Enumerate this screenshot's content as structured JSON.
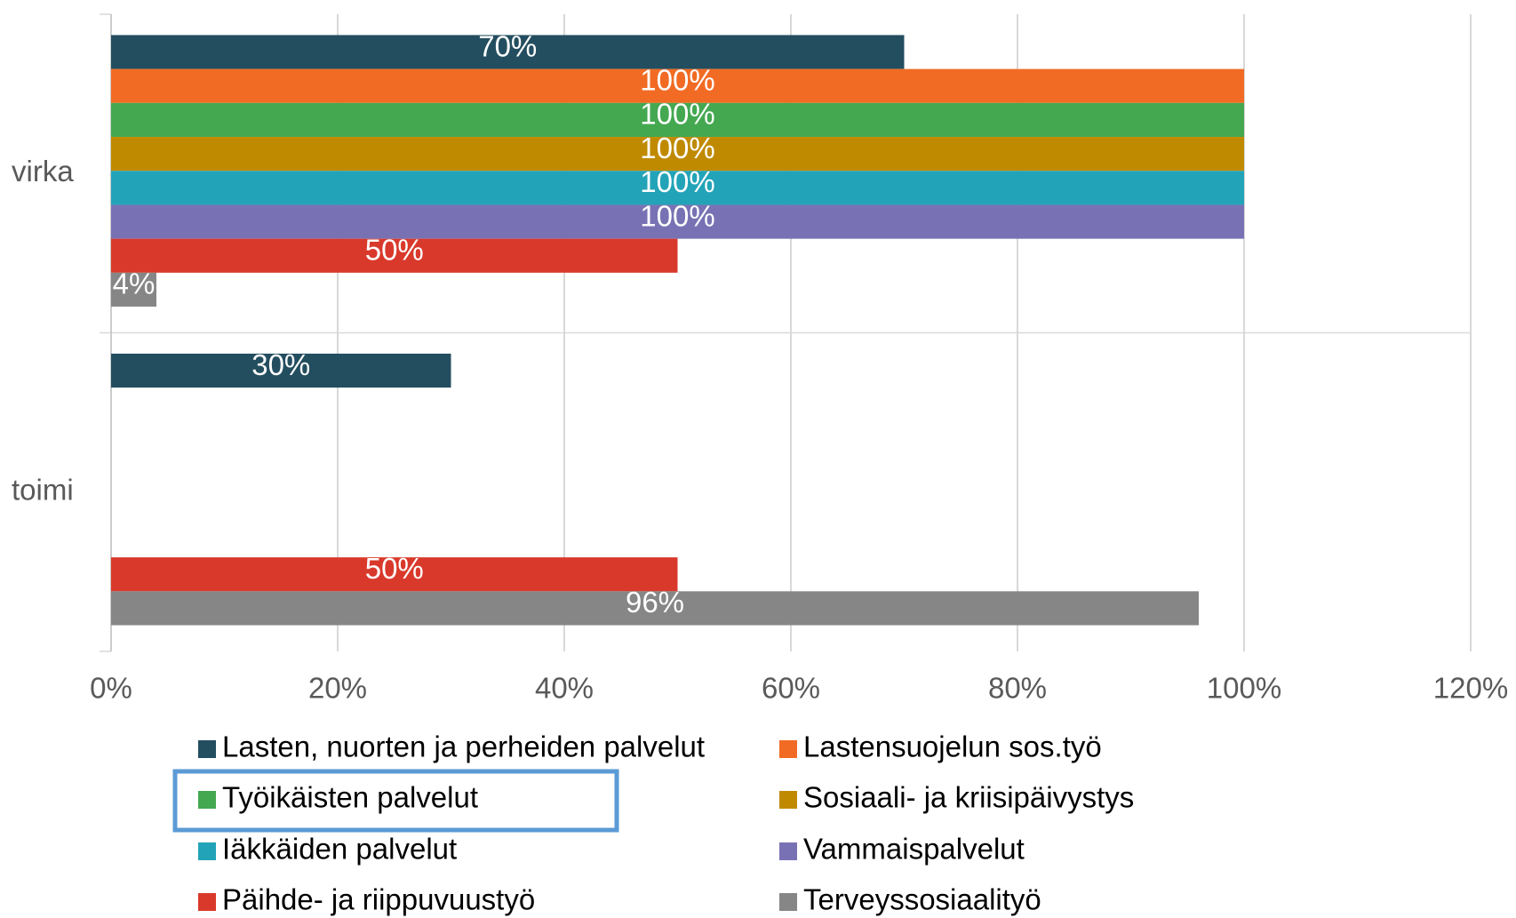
{
  "chart_data": {
    "type": "hbar",
    "categories": [
      "virka",
      "toimi"
    ],
    "series": [
      {
        "name": "Lasten, nuorten ja perheiden palvelut",
        "color": "#234e5f",
        "values": [
          70,
          30
        ],
        "value_labels": [
          "70%",
          "30%"
        ]
      },
      {
        "name": "Lastensuojelun sos.työ",
        "color": "#f26b24",
        "values": [
          100,
          null
        ],
        "value_labels": [
          "100%",
          null
        ]
      },
      {
        "name": "Työikäisten palvelut",
        "color": "#44a851",
        "values": [
          100,
          null
        ],
        "value_labels": [
          "100%",
          null
        ]
      },
      {
        "name": "Sosiaali- ja kriisipäivystys",
        "color": "#c08a00",
        "values": [
          100,
          null
        ],
        "value_labels": [
          "100%",
          null
        ]
      },
      {
        "name": "Iäkkäiden palvelut",
        "color": "#23a3b8",
        "values": [
          100,
          null
        ],
        "value_labels": [
          "100%",
          null
        ]
      },
      {
        "name": "Vammaispalvelut",
        "color": "#7872b4",
        "values": [
          100,
          null
        ],
        "value_labels": [
          "100%",
          null
        ]
      },
      {
        "name": "Päihde- ja riippuvuustyö",
        "color": "#d9392b",
        "values": [
          50,
          50
        ],
        "value_labels": [
          "50%",
          "50%"
        ]
      },
      {
        "name": "Terveyssosiaalityö",
        "color": "#868686",
        "values": [
          4,
          96
        ],
        "value_labels": [
          "4%",
          "96%"
        ]
      }
    ],
    "xlim": [
      0,
      120
    ],
    "xticks": [
      {
        "value": 0,
        "label": "0%"
      },
      {
        "value": 20,
        "label": "20%"
      },
      {
        "value": 40,
        "label": "40%"
      },
      {
        "value": 60,
        "label": "60%"
      },
      {
        "value": 80,
        "label": "80%"
      },
      {
        "value": 100,
        "label": "100%"
      },
      {
        "value": 120,
        "label": "120%"
      }
    ],
    "grid": true,
    "legend": "bottom"
  }
}
